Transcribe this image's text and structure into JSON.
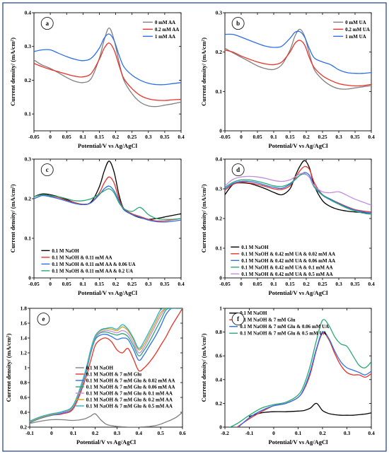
{
  "chart_data": [
    {
      "id": "a",
      "type": "line",
      "panel_label": "a",
      "xlabel": "Potential/V vs Ag/AgCl",
      "ylabel": "Current density/ (mA/cm²)",
      "xlim": [
        -0.05,
        0.4
      ],
      "ylim": [
        0.05,
        0.4
      ],
      "xticks": [
        "-0.05",
        "0",
        "0.05",
        "0.1",
        "0.15",
        "0.2",
        "0.25",
        "0.3",
        "0.35",
        "0.4"
      ],
      "yticks": [
        "0.1",
        "0.2",
        "0.3",
        "0.4"
      ],
      "legend_position": "top-right",
      "x": [
        -0.05,
        -0.025,
        0,
        0.025,
        0.05,
        0.075,
        0.1,
        0.125,
        0.15,
        0.165,
        0.18,
        0.195,
        0.21,
        0.225,
        0.25,
        0.275,
        0.3,
        0.325,
        0.35,
        0.375,
        0.4
      ],
      "series": [
        {
          "name": "0 mM AA",
          "color": "#808080",
          "values": [
            0.26,
            0.245,
            0.235,
            0.222,
            0.208,
            0.197,
            0.193,
            0.205,
            0.265,
            0.32,
            0.355,
            0.32,
            0.255,
            0.2,
            0.16,
            0.135,
            0.124,
            0.122,
            0.126,
            0.13,
            0.135
          ]
        },
        {
          "name": "0.2 mM AA",
          "color": "#e8332a",
          "values": [
            0.25,
            0.24,
            0.232,
            0.225,
            0.218,
            0.212,
            0.21,
            0.22,
            0.262,
            0.295,
            0.31,
            0.29,
            0.245,
            0.205,
            0.175,
            0.155,
            0.145,
            0.141,
            0.14,
            0.142,
            0.143
          ]
        },
        {
          "name": "1 mM AA",
          "color": "#2e6fe6",
          "values": [
            0.285,
            0.29,
            0.29,
            0.28,
            0.27,
            0.262,
            0.258,
            0.265,
            0.295,
            0.325,
            0.337,
            0.318,
            0.275,
            0.24,
            0.215,
            0.2,
            0.191,
            0.187,
            0.187,
            0.19,
            0.193
          ]
        }
      ]
    },
    {
      "id": "b",
      "type": "line",
      "panel_label": "b",
      "xlabel": "Potential/V vs Ag/AgCl",
      "ylabel": "Current density/ (mA/cm²)",
      "xlim": [
        -0.05,
        0.4
      ],
      "ylim": [
        0.0,
        0.3
      ],
      "xticks": [
        "-0.05",
        "0",
        "0.05",
        "0.1",
        "0.15",
        "0.2",
        "0.25",
        "0.3",
        "0.35",
        "0.4"
      ],
      "yticks": [
        "0",
        "0.1",
        "0.2",
        "0.3"
      ],
      "legend_position": "top-right",
      "x": [
        -0.05,
        -0.025,
        0,
        0.025,
        0.05,
        0.075,
        0.1,
        0.125,
        0.15,
        0.165,
        0.18,
        0.195,
        0.21,
        0.225,
        0.25,
        0.275,
        0.3,
        0.325,
        0.35,
        0.375,
        0.4
      ],
      "series": [
        {
          "name": "0 mM UA",
          "color": "#808080",
          "values": [
            0.21,
            0.198,
            0.187,
            0.176,
            0.165,
            0.158,
            0.156,
            0.168,
            0.205,
            0.24,
            0.258,
            0.24,
            0.195,
            0.155,
            0.13,
            0.115,
            0.107,
            0.106,
            0.109,
            0.112,
            0.115
          ]
        },
        {
          "name": "0.2 mM UA",
          "color": "#e8332a",
          "values": [
            0.205,
            0.2,
            0.19,
            0.182,
            0.175,
            0.17,
            0.168,
            0.175,
            0.2,
            0.222,
            0.23,
            0.218,
            0.185,
            0.16,
            0.14,
            0.128,
            0.12,
            0.116,
            0.114,
            0.115,
            0.118
          ]
        },
        {
          "name": "1 mM UA",
          "color": "#2e6fe6",
          "values": [
            0.245,
            0.245,
            0.238,
            0.23,
            0.222,
            0.215,
            0.212,
            0.215,
            0.235,
            0.25,
            0.252,
            0.238,
            0.208,
            0.185,
            0.175,
            0.168,
            0.155,
            0.148,
            0.146,
            0.146,
            0.148
          ]
        }
      ]
    },
    {
      "id": "c",
      "type": "line",
      "panel_label": "c",
      "xlabel": "Potential/V vs Ag/AgCl",
      "ylabel": "Current density/ (mA/cm²)",
      "xlim": [
        -0.05,
        0.4
      ],
      "ylim": [
        0.0,
        0.3
      ],
      "xticks": [
        "-0.05",
        "0",
        "0.05",
        "0.1",
        "0.15",
        "0.2",
        "0.25",
        "0.3",
        "0.35",
        "0.4"
      ],
      "yticks": [
        "0",
        "0.1",
        "0.2",
        "0.3"
      ],
      "legend_position": "bottom-left",
      "x": [
        -0.05,
        -0.025,
        0,
        0.025,
        0.05,
        0.075,
        0.1,
        0.125,
        0.15,
        0.165,
        0.18,
        0.195,
        0.21,
        0.225,
        0.25,
        0.275,
        0.3,
        0.325,
        0.35,
        0.375,
        0.4
      ],
      "series": [
        {
          "name": "0.1 M NaOH",
          "color": "#000000",
          "values": [
            0.205,
            0.212,
            0.21,
            0.205,
            0.198,
            0.19,
            0.185,
            0.192,
            0.23,
            0.27,
            0.295,
            0.268,
            0.21,
            0.175,
            0.16,
            0.152,
            0.148,
            0.15,
            0.154,
            0.158,
            0.162
          ]
        },
        {
          "name": "0.1 M NaOH & 0.11 mM AA",
          "color": "#e8332a",
          "values": [
            0.2,
            0.208,
            0.207,
            0.203,
            0.196,
            0.19,
            0.186,
            0.19,
            0.215,
            0.24,
            0.255,
            0.24,
            0.2,
            0.175,
            0.162,
            0.155,
            0.148,
            0.144,
            0.144,
            0.147,
            0.15
          ]
        },
        {
          "name": "0.1 M NaOH & 0.11 mM AA & 0.06 UA",
          "color": "#2e6fe6",
          "values": [
            0.2,
            0.208,
            0.205,
            0.2,
            0.194,
            0.188,
            0.185,
            0.19,
            0.21,
            0.225,
            0.232,
            0.22,
            0.195,
            0.172,
            0.16,
            0.153,
            0.146,
            0.142,
            0.141,
            0.143,
            0.146
          ]
        },
        {
          "name": "0.1 M NaOH & 0.11 mM AA & 0.2 UA",
          "color": "#2aa876",
          "values": [
            0.205,
            0.21,
            0.208,
            0.205,
            0.2,
            0.195,
            0.195,
            0.2,
            0.212,
            0.22,
            0.225,
            0.215,
            0.19,
            0.175,
            0.168,
            0.178,
            0.16,
            0.15,
            0.148,
            0.148,
            0.15
          ]
        }
      ]
    },
    {
      "id": "d",
      "type": "line",
      "panel_label": "d",
      "xlabel": "Potential/V vs Ag/AgCl",
      "ylabel": "Current density/ (mA/cm²)",
      "xlim": [
        -0.05,
        0.4
      ],
      "ylim": [
        0.0,
        0.4
      ],
      "xticks": [
        "-0.05",
        "0",
        "0.05",
        "0.1",
        "0.15",
        "0.2",
        "0.25",
        "0.3",
        "0.35",
        "0.4"
      ],
      "yticks": [
        "0",
        "0.1",
        "0.2",
        "0.3",
        "0.4"
      ],
      "legend_position": "bottom-left",
      "x": [
        -0.05,
        -0.025,
        0,
        0.025,
        0.05,
        0.075,
        0.1,
        0.125,
        0.15,
        0.165,
        0.18,
        0.195,
        0.21,
        0.225,
        0.25,
        0.275,
        0.3,
        0.325,
        0.35,
        0.375,
        0.4
      ],
      "series": [
        {
          "name": "0.1 M NaOH",
          "color": "#000000",
          "values": [
            0.28,
            0.315,
            0.32,
            0.318,
            0.31,
            0.3,
            0.288,
            0.28,
            0.3,
            0.34,
            0.375,
            0.395,
            0.37,
            0.31,
            0.26,
            0.24,
            0.23,
            0.225,
            0.222,
            0.22,
            0.218
          ]
        },
        {
          "name": "0.1 M NaOH & 0.42 mM UA & 0.02 mM AA",
          "color": "#e8332a",
          "values": [
            0.295,
            0.315,
            0.322,
            0.32,
            0.315,
            0.308,
            0.3,
            0.298,
            0.31,
            0.335,
            0.36,
            0.375,
            0.365,
            0.32,
            0.28,
            0.265,
            0.252,
            0.24,
            0.23,
            0.225,
            0.222
          ]
        },
        {
          "name": "0.1 M NaOH & 0.42 mM UA & 0.06 mM AA",
          "color": "#2e6fe6",
          "values": [
            0.3,
            0.318,
            0.325,
            0.325,
            0.32,
            0.312,
            0.305,
            0.302,
            0.315,
            0.33,
            0.345,
            0.355,
            0.345,
            0.31,
            0.28,
            0.265,
            0.25,
            0.238,
            0.228,
            0.222,
            0.218
          ]
        },
        {
          "name": "0.1 M NaOH & 0.42 mM UA & 0.1 mM AA",
          "color": "#2aa876",
          "values": [
            0.305,
            0.322,
            0.33,
            0.33,
            0.325,
            0.318,
            0.31,
            0.308,
            0.318,
            0.332,
            0.345,
            0.35,
            0.338,
            0.305,
            0.278,
            0.262,
            0.248,
            0.235,
            0.225,
            0.218,
            0.214
          ]
        },
        {
          "name": "0.1 M NaOH & 0.42 mM UA & 0.5 mM AA",
          "color": "#c48be0",
          "values": [
            0.31,
            0.332,
            0.34,
            0.342,
            0.34,
            0.335,
            0.328,
            0.325,
            0.33,
            0.34,
            0.35,
            0.352,
            0.338,
            0.31,
            0.29,
            0.287,
            0.29,
            0.278,
            0.265,
            0.255,
            0.245
          ]
        }
      ]
    },
    {
      "id": "e",
      "type": "line",
      "panel_label": "e",
      "xlabel": "Potential/V vs Ag/AgCl",
      "ylabel": "Current density/ (mA/cm²)",
      "xlim": [
        -0.1,
        0.6
      ],
      "ylim": [
        0.2,
        1.8
      ],
      "xticks": [
        "-0.1",
        "0",
        "0.1",
        "0.2",
        "0.3",
        "0.4",
        "0.5",
        "0.6"
      ],
      "yticks": [
        "0.2",
        "0.4",
        "0.6",
        "0.8",
        "1",
        "1.2",
        "1.4",
        "1.6",
        "1.8"
      ],
      "legend_position": "bottom-center",
      "x": [
        -0.1,
        -0.05,
        0,
        0.05,
        0.1,
        0.15,
        0.18,
        0.2,
        0.225,
        0.25,
        0.275,
        0.3,
        0.325,
        0.35,
        0.375,
        0.4,
        0.425,
        0.45,
        0.475,
        0.5,
        0.525,
        0.55,
        0.575,
        0.6
      ],
      "series": [
        {
          "name": "0.1 M NaOH",
          "color": "#808080",
          "values": [
            0.25,
            0.28,
            0.3,
            0.3,
            0.29,
            0.31,
            0.35,
            0.38,
            0.3,
            0.24,
            0.22,
            0.21,
            0.205,
            0.2,
            0.2,
            0.2,
            0.205,
            0.21,
            0.22,
            0.24,
            0.27,
            0.3,
            0.34,
            0.4
          ]
        },
        {
          "name": "0.1 M NaOH & 7 mM Glu",
          "color": "#e8332a",
          "values": [
            0.27,
            0.32,
            0.36,
            0.38,
            0.45,
            0.8,
            1.1,
            1.3,
            1.38,
            1.4,
            1.35,
            1.24,
            1.2,
            1.26,
            1.12,
            0.96,
            1.0,
            1.08,
            1.18,
            1.3,
            1.42,
            1.56,
            1.68,
            1.8
          ]
        },
        {
          "name": "0.1 M NaOH & 7 mM Glu & 0.02 mM AA",
          "color": "#2e6fe6",
          "values": [
            0.26,
            0.32,
            0.36,
            0.39,
            0.47,
            0.85,
            1.2,
            1.38,
            1.44,
            1.45,
            1.42,
            1.38,
            1.4,
            1.38,
            1.25,
            1.1,
            1.18,
            1.3,
            1.42,
            1.56,
            1.72,
            1.8,
            1.8,
            1.8
          ]
        },
        {
          "name": "0.1 M NaOH & 7 mM Glu & 0.06 mM AA",
          "color": "#2aa876",
          "values": [
            0.27,
            0.33,
            0.37,
            0.4,
            0.48,
            0.87,
            1.22,
            1.4,
            1.47,
            1.48,
            1.46,
            1.44,
            1.46,
            1.42,
            1.3,
            1.16,
            1.24,
            1.36,
            1.5,
            1.64,
            1.78,
            1.8,
            1.8,
            1.8
          ]
        },
        {
          "name": "0.1 M NaOH & 7 mM Glu & 0.1 mM AA",
          "color": "#c48be0",
          "values": [
            0.27,
            0.33,
            0.37,
            0.4,
            0.48,
            0.88,
            1.23,
            1.41,
            1.48,
            1.5,
            1.49,
            1.47,
            1.5,
            1.46,
            1.34,
            1.2,
            1.28,
            1.42,
            1.56,
            1.7,
            1.8,
            1.8,
            1.8,
            1.8
          ]
        },
        {
          "name": "0.1 M NaOH & 7 mM Glu & 0.2 mM AA",
          "color": "#d4a017",
          "values": [
            0.27,
            0.33,
            0.37,
            0.41,
            0.49,
            0.89,
            1.24,
            1.42,
            1.5,
            1.52,
            1.52,
            1.5,
            1.55,
            1.5,
            1.38,
            1.24,
            1.32,
            1.46,
            1.6,
            1.74,
            1.8,
            1.8,
            1.8,
            1.8
          ]
        },
        {
          "name": "0.1 M NaOH & 7 mM Glu & 0.5 mM AA",
          "color": "#24b3c8",
          "values": [
            0.28,
            0.34,
            0.38,
            0.41,
            0.5,
            0.9,
            1.25,
            1.43,
            1.51,
            1.53,
            1.54,
            1.52,
            1.58,
            1.52,
            1.4,
            1.26,
            1.36,
            1.5,
            1.64,
            1.78,
            1.8,
            1.8,
            1.8,
            1.8
          ]
        }
      ]
    },
    {
      "id": "f",
      "type": "line",
      "panel_label": "f",
      "xlabel": "Potential/V vs Ag/AgCl",
      "ylabel": "Current density/ (mA/cm²)",
      "xlim": [
        -0.2,
        0.4
      ],
      "ylim": [
        0.0,
        1.0
      ],
      "xticks": [
        "-0.2",
        "-0.1",
        "0",
        "0.1",
        "0.2",
        "0.3",
        "0.4"
      ],
      "yticks": [
        "0",
        "0.2",
        "0.4",
        "0.6",
        "0.8",
        "1"
      ],
      "legend_position": "top-left",
      "x": [
        -0.2,
        -0.15,
        -0.1,
        -0.05,
        0,
        0.05,
        0.1,
        0.125,
        0.15,
        0.175,
        0.2,
        0.225,
        0.25,
        0.275,
        0.3,
        0.325,
        0.35,
        0.375,
        0.4
      ],
      "series": [
        {
          "name": "0.1 M NaOH",
          "color": "#000000",
          "values": [
            null,
            null,
            0.09,
            0.12,
            0.13,
            0.13,
            0.135,
            0.14,
            0.16,
            0.2,
            0.14,
            0.115,
            0.105,
            0.1,
            0.1,
            0.1,
            0.105,
            0.11,
            0.12
          ]
        },
        {
          "name": "0.1 M NaOH & 7 mM Glu",
          "color": "#e8332a",
          "values": [
            null,
            0.0,
            0.07,
            0.13,
            0.18,
            0.2,
            0.25,
            0.32,
            0.45,
            0.65,
            0.79,
            0.74,
            0.62,
            0.52,
            0.46,
            0.44,
            0.44,
            0.42,
            0.45
          ]
        },
        {
          "name": "0.1 M NaOH & 7 mM Glu & 0.06 mM UA",
          "color": "#2e6fe6",
          "values": [
            null,
            -0.01,
            0.08,
            0.14,
            0.18,
            0.2,
            0.25,
            0.33,
            0.47,
            0.66,
            0.8,
            0.75,
            0.64,
            0.55,
            0.5,
            0.48,
            0.46,
            0.44,
            0.47
          ]
        },
        {
          "name": "0.1 M NaOH & 7 mM Glu & 0.5 mM UA",
          "color": "#2aa876",
          "values": [
            -0.02,
            0.03,
            0.1,
            0.16,
            0.19,
            0.21,
            0.27,
            0.36,
            0.52,
            0.73,
            0.9,
            0.86,
            0.76,
            0.7,
            0.68,
            0.6,
            0.52,
            0.5,
            0.55
          ]
        }
      ]
    }
  ]
}
